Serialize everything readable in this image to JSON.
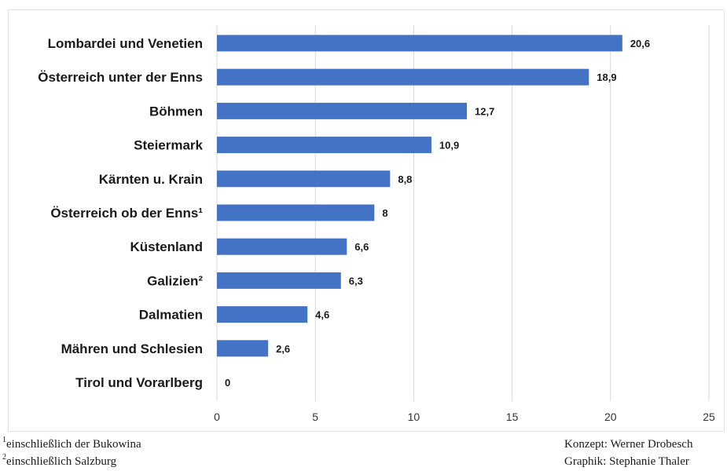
{
  "chart_data": {
    "type": "bar",
    "orientation": "horizontal",
    "categories": [
      "Lombardei und Venetien",
      "Österreich unter der Enns",
      "Böhmen",
      "Steiermark",
      "Kärnten u. Krain",
      "Österreich ob der Enns¹",
      "Küstenland",
      "Galizien²",
      "Dalmatien",
      "Mähren und Schlesien",
      "Tirol und Vorarlberg"
    ],
    "values": [
      20.6,
      18.9,
      12.7,
      10.9,
      8.8,
      8,
      6.6,
      6.3,
      4.6,
      2.6,
      0
    ],
    "value_labels": [
      "20,6",
      "18,9",
      "12,7",
      "10,9",
      "8,8",
      "8",
      "6,6",
      "6,3",
      "4,6",
      "2,6",
      "0"
    ],
    "xlim": [
      0,
      25
    ],
    "x_ticks": [
      0,
      5,
      10,
      15,
      20,
      25
    ],
    "grid": "vertical",
    "bar_color": "#4472c4"
  },
  "footnotes": {
    "note1_mark": "1",
    "note1_text": "einschließlich der Bukowina",
    "note2_mark": "2",
    "note2_text": "einschließlich Salzburg"
  },
  "credits": {
    "concept": "Konzept: Werner Drobesch",
    "graphic": "Graphik: Stephanie Thaler"
  }
}
